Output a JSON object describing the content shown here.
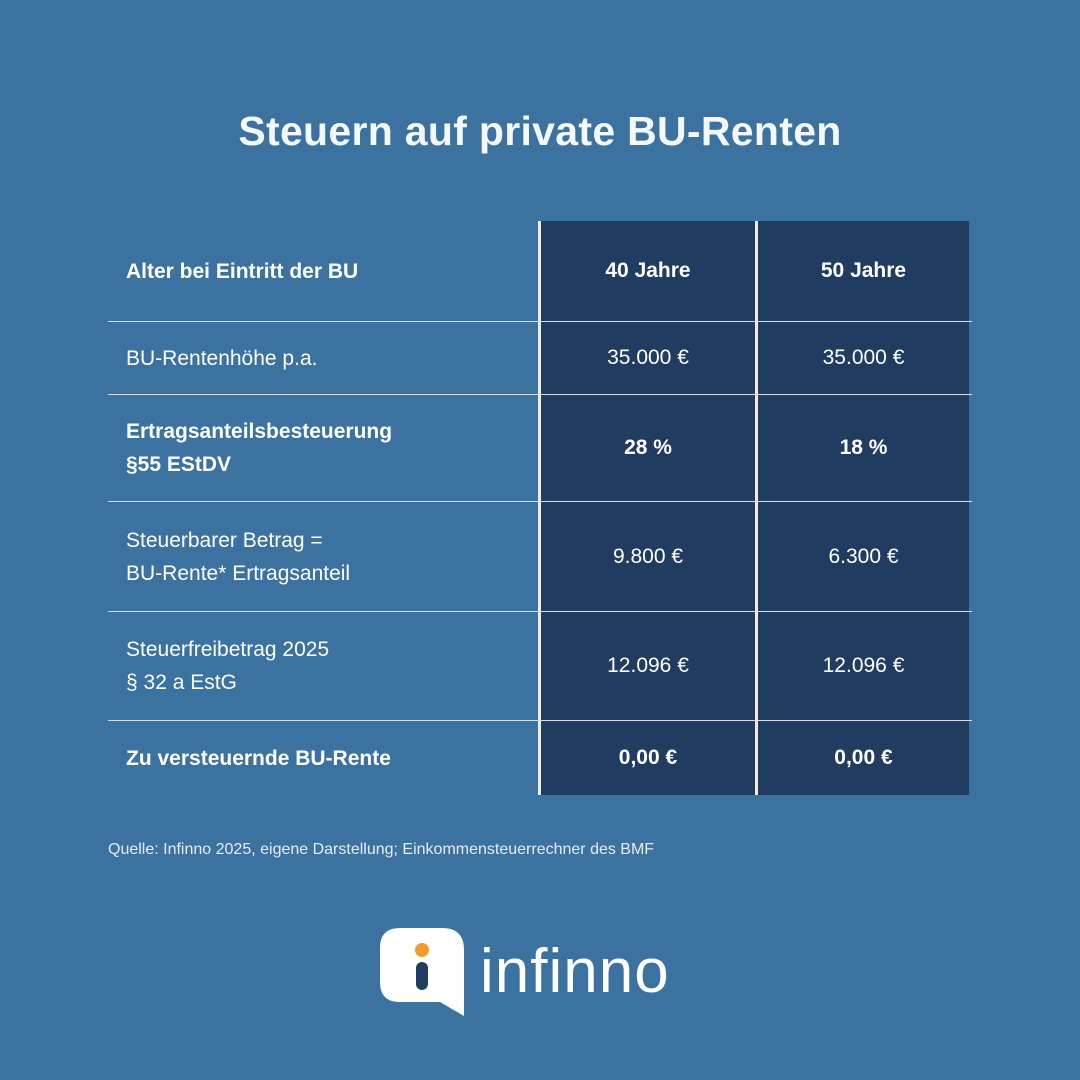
{
  "title": "Steuern auf private BU-Renten",
  "table": {
    "header": {
      "label": "Alter bei Eintritt der BU",
      "col1": "40 Jahre",
      "col2": "50 Jahre"
    },
    "rows": [
      {
        "label_line1": "BU-Rentenhöhe p.a.",
        "label_line2": "",
        "col1": "35.000 €",
        "col2": "35.000 €"
      },
      {
        "label_line1": "Ertragsanteilsbesteuerung",
        "label_line2": "§55 EStDV",
        "col1": "28 %",
        "col2": "18 %"
      },
      {
        "label_line1": "Steuerbarer Betrag =",
        "label_line2": "BU-Rente* Ertragsanteil",
        "col1": "9.800 €",
        "col2": "6.300 €"
      },
      {
        "label_line1": "Steuerfreibetrag 2025",
        "label_line2": "§ 32 a EstG",
        "col1": "12.096 €",
        "col2": "12.096 €"
      },
      {
        "label_line1": "Zu versteuernde BU-Rente",
        "label_line2": "",
        "col1": "0,00 €",
        "col2": "0,00 €"
      }
    ]
  },
  "source": "Quelle: Infinno 2025, eigene Darstellung; Einkommensteuerrechner des BMF",
  "logo": {
    "text": "infinno",
    "icon": "infinno-i-icon",
    "accent_color": "#f39a2c"
  },
  "colors": {
    "background": "#3c72a0",
    "cell_background": "#213c61",
    "divider": "#f2ece0"
  }
}
